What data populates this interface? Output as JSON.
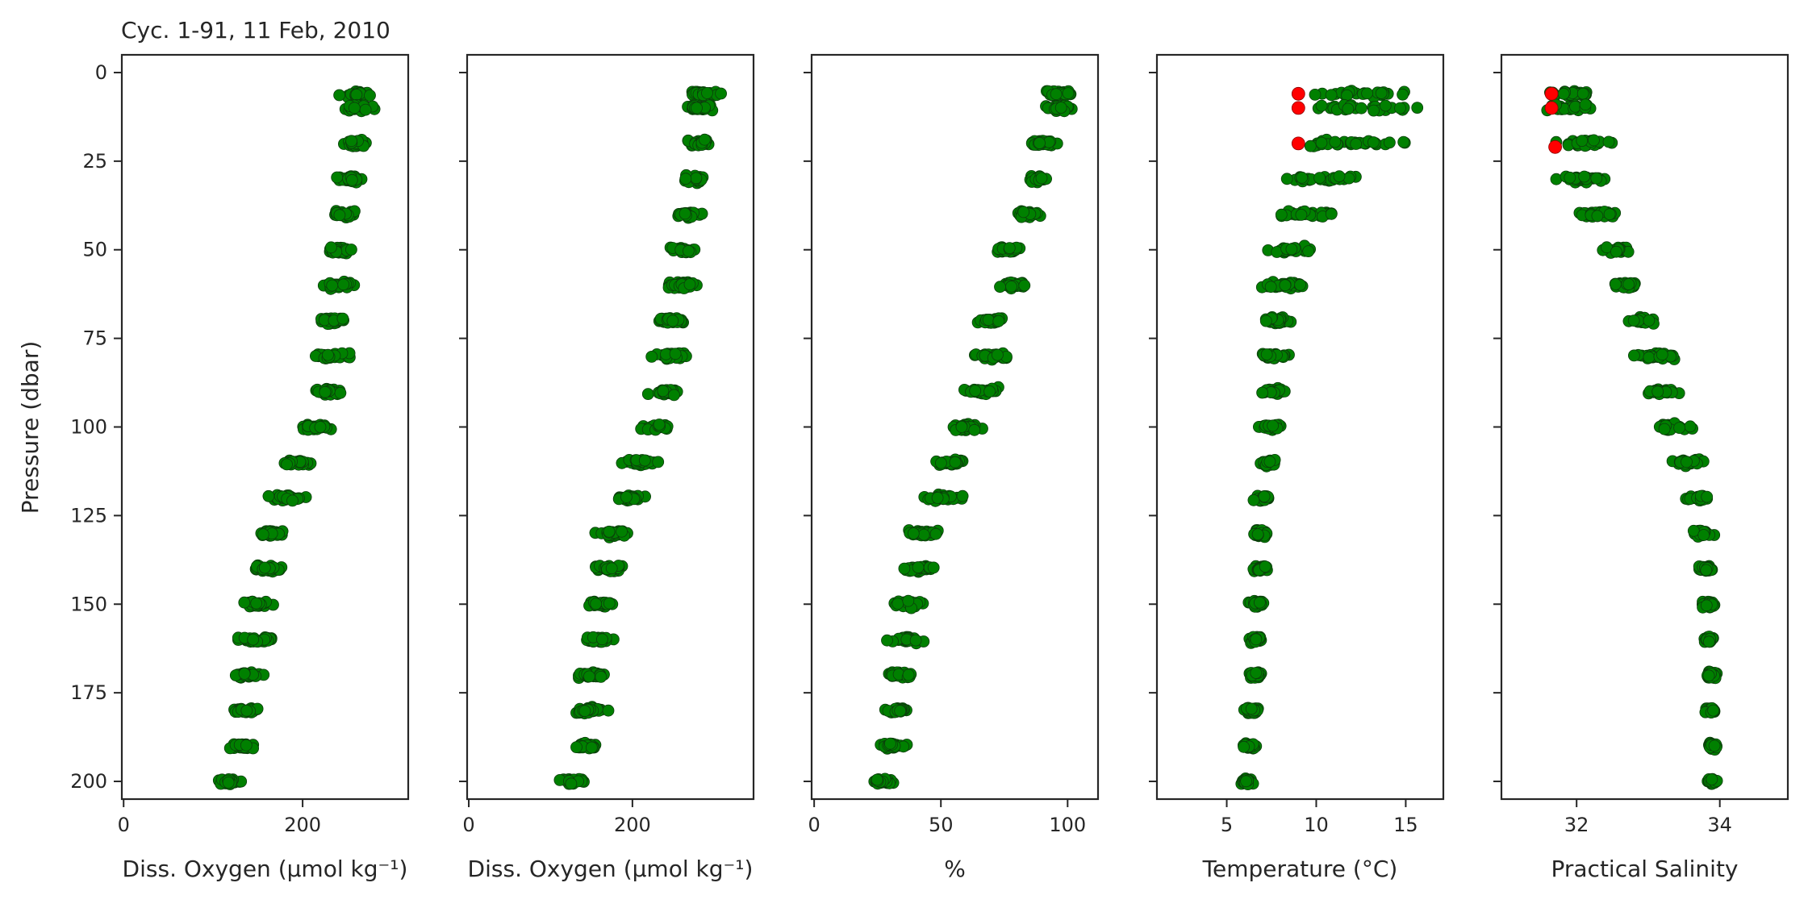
{
  "title": "Cyc. 1-91, 11 Feb, 2010",
  "ylabel": "Pressure (dbar)",
  "y_ticks": [
    0,
    25,
    50,
    75,
    100,
    125,
    150,
    175,
    200
  ],
  "colors": {
    "good": "#008000",
    "flagged": "#ff0000",
    "axis": "#262626"
  },
  "chart_data": [
    {
      "type": "scatter",
      "xlabel": "Diss. Oxygen (µmol kg⁻¹)",
      "xlim": [
        -2,
        318
      ],
      "ylim": [
        205,
        -5
      ],
      "x_ticks": [
        0,
        200
      ],
      "y_tick_labels_visible": true,
      "profile": {
        "p": [
          6,
          10,
          20,
          30,
          40,
          50,
          60,
          70,
          80,
          90,
          100,
          110,
          120,
          130,
          140,
          150,
          160,
          170,
          180,
          190,
          200
        ],
        "x": [
          262,
          262,
          258,
          255,
          246,
          242,
          242,
          232,
          232,
          226,
          212,
          195,
          182,
          165,
          158,
          150,
          148,
          140,
          138,
          133,
          118
        ],
        "spread": [
          50,
          50,
          38,
          40,
          48,
          40,
          46,
          48,
          60,
          54,
          50,
          48,
          54,
          50,
          50,
          48,
          50,
          46,
          48,
          44,
          44
        ]
      },
      "flagged": []
    },
    {
      "type": "scatter",
      "xlabel": "Diss. Oxygen (µmol kg⁻¹)",
      "xlim": [
        -2,
        348
      ],
      "ylim": [
        205,
        -5
      ],
      "x_ticks": [
        0,
        200
      ],
      "y_tick_labels_visible": false,
      "profile": {
        "p": [
          6,
          10,
          20,
          30,
          40,
          50,
          60,
          70,
          80,
          90,
          100,
          110,
          120,
          130,
          140,
          150,
          160,
          170,
          180,
          190,
          200
        ],
        "x": [
          285,
          285,
          280,
          278,
          268,
          262,
          262,
          248,
          248,
          242,
          226,
          208,
          195,
          178,
          170,
          160,
          158,
          150,
          148,
          143,
          128
        ],
        "spread": [
          56,
          56,
          42,
          44,
          52,
          44,
          50,
          52,
          64,
          58,
          54,
          52,
          58,
          54,
          54,
          52,
          54,
          50,
          52,
          48,
          48
        ]
      },
      "flagged": []
    },
    {
      "type": "scatter",
      "xlabel": "%",
      "xlim": [
        -1,
        112
      ],
      "ylim": [
        205,
        -5
      ],
      "x_ticks": [
        0,
        50,
        100
      ],
      "y_tick_labels_visible": false,
      "profile": {
        "p": [
          6,
          10,
          20,
          30,
          40,
          50,
          60,
          70,
          80,
          90,
          100,
          110,
          120,
          130,
          140,
          150,
          160,
          170,
          180,
          190,
          200
        ],
        "x": [
          96,
          96,
          90,
          88,
          84,
          77,
          78,
          70,
          70,
          66,
          60,
          54,
          50,
          43,
          42,
          38,
          36,
          34,
          33,
          31,
          27
        ],
        "spread": [
          16,
          16,
          14,
          14,
          16,
          14,
          16,
          16,
          20,
          18,
          16,
          16,
          18,
          18,
          18,
          17,
          17,
          16,
          16,
          15,
          15
        ]
      },
      "flagged": []
    },
    {
      "type": "scatter",
      "xlabel": "Temperature (°C)",
      "xlim": [
        1.1,
        17.1
      ],
      "ylim": [
        205,
        -5
      ],
      "x_ticks": [
        5,
        10,
        15
      ],
      "y_tick_labels_visible": false,
      "profile": {
        "p": [
          6,
          10,
          20,
          30,
          40,
          50,
          60,
          70,
          80,
          90,
          100,
          110,
          120,
          130,
          140,
          150,
          160,
          170,
          180,
          190,
          200
        ],
        "x": [
          12.5,
          12.5,
          12.0,
          10.5,
          9.5,
          8.8,
          8.2,
          7.9,
          7.7,
          7.6,
          7.4,
          7.3,
          7.0,
          6.9,
          6.8,
          6.7,
          6.6,
          6.6,
          6.4,
          6.3,
          6.1
        ],
        "spread": [
          8,
          8,
          8,
          7,
          6,
          4,
          4,
          2,
          2,
          2,
          1.6,
          1.6,
          1.2,
          1.2,
          1.2,
          1.2,
          1,
          1,
          1,
          1,
          1
        ]
      },
      "flagged": [
        [
          9.0,
          6
        ],
        [
          9.0,
          10
        ],
        [
          9.0,
          20
        ]
      ]
    },
    {
      "type": "scatter",
      "xlabel": "Practical Salinity",
      "xlim": [
        30.95,
        34.95
      ],
      "ylim": [
        205,
        -5
      ],
      "x_ticks": [
        32,
        34
      ],
      "y_tick_labels_visible": false,
      "profile": {
        "p": [
          6,
          10,
          20,
          30,
          40,
          50,
          60,
          70,
          80,
          90,
          100,
          110,
          120,
          130,
          140,
          150,
          160,
          170,
          180,
          190,
          200
        ],
        "x": [
          31.9,
          31.9,
          32.1,
          32.1,
          32.3,
          32.6,
          32.7,
          32.9,
          33.1,
          33.2,
          33.35,
          33.55,
          33.7,
          33.75,
          33.8,
          33.85,
          33.85,
          33.88,
          33.88,
          33.9,
          33.9
        ],
        "spread": [
          1.1,
          1.1,
          0.9,
          0.9,
          0.7,
          0.7,
          0.6,
          0.7,
          0.8,
          0.8,
          0.7,
          0.6,
          0.5,
          0.4,
          0.3,
          0.25,
          0.2,
          0.2,
          0.2,
          0.2,
          0.2
        ]
      },
      "flagged": [
        [
          31.65,
          6
        ],
        [
          31.65,
          10
        ],
        [
          31.7,
          21
        ]
      ]
    }
  ]
}
